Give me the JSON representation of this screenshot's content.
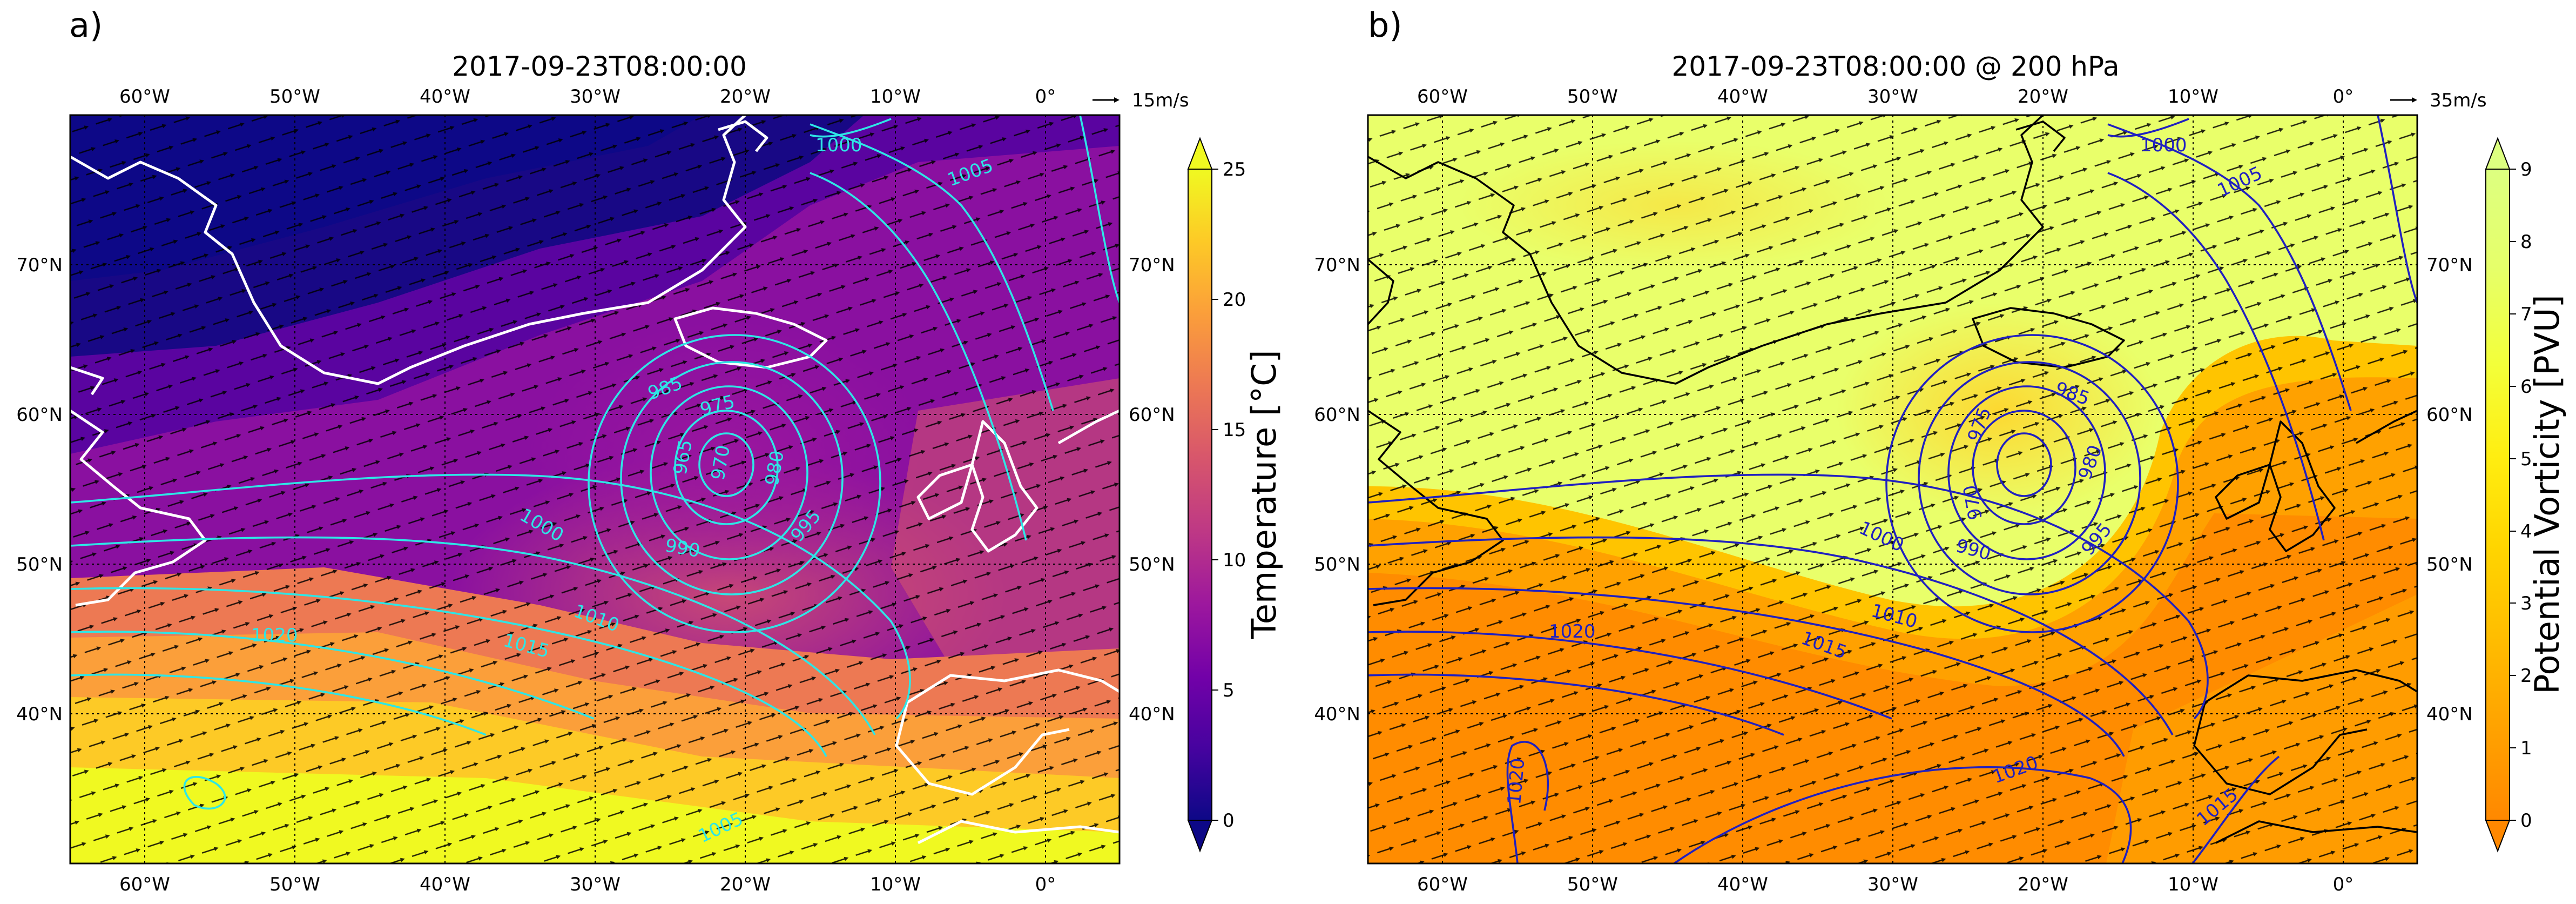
{
  "colors": {
    "panel_a_contour": "#2ee6e6",
    "panel_a_coast": "#ffffff",
    "panel_b_contour": "#2020c0",
    "panel_b_coast": "#000000",
    "plasma": [
      "#0d0887",
      "#46039f",
      "#7201a8",
      "#9c179e",
      "#bd3786",
      "#d8576b",
      "#ed7953",
      "#fb9f3a",
      "#fdca26",
      "#f0f921"
    ],
    "pv_cmap": [
      "#ff8800",
      "#ffa200",
      "#ffbd00",
      "#ffd500",
      "#ffee11",
      "#f3ff3a",
      "#e6ff6a",
      "#ddff80"
    ]
  },
  "panels": [
    {
      "letter": "a)",
      "title": "2017-09-23T08:00:00",
      "quiver_key": "15m/s",
      "colorbar": {
        "label": "Temperature [°C]",
        "ticks": [
          "0",
          "5",
          "10",
          "15",
          "20",
          "25"
        ],
        "extend": "both"
      },
      "top_lon_labels": [
        "60°W",
        "50°W",
        "40°W",
        "30°W",
        "20°W",
        "10°W",
        "0°"
      ],
      "bottom_lon_labels": [
        "60°W",
        "50°W",
        "40°W",
        "30°W",
        "20°W",
        "10°W",
        "0°"
      ],
      "left_lat_labels": [
        "70°N",
        "60°N",
        "50°N",
        "40°N"
      ],
      "right_lat_labels": [
        "70°N",
        "60°N",
        "50°N",
        "40°N"
      ],
      "contour_labels": [
        "1000",
        "1005",
        "985",
        "975",
        "965",
        "970",
        "980",
        "1000",
        "990",
        "995",
        "1010",
        "1020",
        "1015",
        "1005"
      ]
    },
    {
      "letter": "b)",
      "title": "2017-09-23T08:00:00 @ 200 hPa",
      "quiver_key": "35m/s",
      "colorbar": {
        "label": "Potential Vorticity [PVU]",
        "ticks": [
          "0",
          "1",
          "2",
          "3",
          "4",
          "5",
          "6",
          "7",
          "8",
          "9"
        ],
        "extend": "both"
      },
      "top_lon_labels": [
        "60°W",
        "50°W",
        "40°W",
        "30°W",
        "20°W",
        "10°W",
        "0°"
      ],
      "bottom_lon_labels": [
        "60°W",
        "50°W",
        "40°W",
        "30°W",
        "20°W",
        "10°W",
        "0°"
      ],
      "left_lat_labels": [
        "70°N",
        "60°N",
        "50°N",
        "40°N"
      ],
      "right_lat_labels": [
        "70°N",
        "60°N",
        "50°N",
        "40°N"
      ],
      "contour_labels": [
        "1000",
        "1005",
        "985",
        "975",
        "970",
        "980",
        "990",
        "1000",
        "995",
        "1010",
        "1015",
        "1020",
        "1020",
        "1020",
        "1015"
      ]
    }
  ]
}
